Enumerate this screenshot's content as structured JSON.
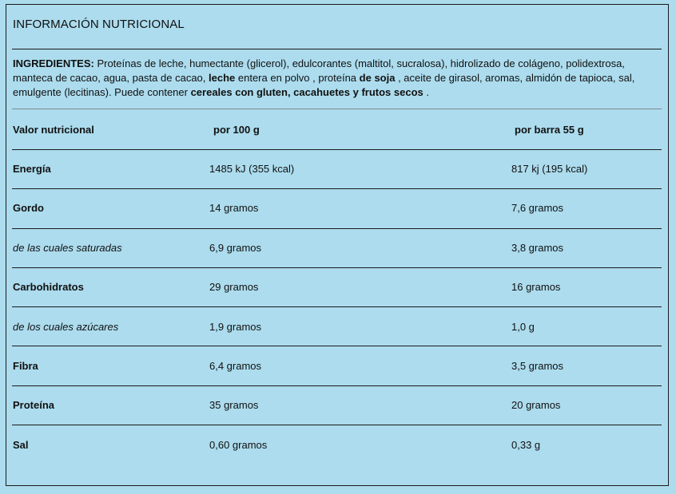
{
  "title": "INFORMACIÓN NUTRICIONAL",
  "ingredients": [
    {
      "text": "INGREDIENTES:",
      "bold": true
    },
    {
      "text": " Proteínas de leche, humectante (glicerol), edulcorantes (maltitol, sucralosa), hidrolizado de colágeno, polidextrosa, manteca de cacao, agua, pasta de cacao, ",
      "bold": false
    },
    {
      "text": "leche",
      "bold": true
    },
    {
      "text": " entera en polvo , proteína ",
      "bold": false
    },
    {
      "text": "de soja",
      "bold": true
    },
    {
      "text": " , aceite de girasol, aromas, almidón de tapioca, sal, emulgente (lecitinas). Puede contener ",
      "bold": false
    },
    {
      "text": "cereales con gluten, cacahuetes y frutos secos",
      "bold": true
    },
    {
      "text": " .",
      "bold": false
    }
  ],
  "table": {
    "headers": [
      "Valor nutricional",
      "por 100 g",
      "por barra 55 g"
    ],
    "rows": [
      {
        "label": "Energía",
        "per100": "1485 kJ (355 kcal)",
        "perBar": "817 kj (195 kcal)",
        "sub": false
      },
      {
        "label": "Gordo",
        "per100": "14 gramos",
        "perBar": "7,6 gramos",
        "sub": false
      },
      {
        "label": "de las cuales saturadas",
        "per100": "6,9 gramos",
        "perBar": "3,8 gramos",
        "sub": true
      },
      {
        "label": "Carbohidratos",
        "per100": "29 gramos",
        "perBar": "16 gramos",
        "sub": false
      },
      {
        "label": "de los cuales azúcares",
        "per100": "1,9 gramos",
        "perBar": "1,0 g",
        "sub": true
      },
      {
        "label": "Fibra",
        "per100": "6,4 gramos",
        "perBar": "3,5 gramos",
        "sub": false
      },
      {
        "label": "Proteína",
        "per100": "35 gramos",
        "perBar": "20 gramos",
        "sub": false
      },
      {
        "label": "Sal",
        "per100": "0,60 gramos",
        "perBar": "0,33 g",
        "sub": false
      }
    ]
  },
  "colors": {
    "background": "#acdcee",
    "text": "#111111",
    "rule": "#1a1a1a"
  }
}
